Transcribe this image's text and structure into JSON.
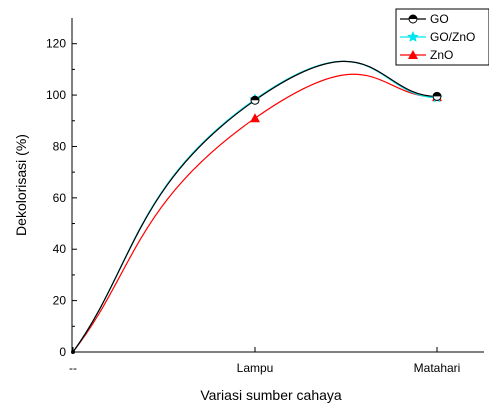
{
  "chart_data": {
    "type": "line",
    "title": "",
    "xlabel": "Variasi sumber cahaya",
    "ylabel": "Dekolorisasi (%)",
    "categories": [
      "--",
      "Lampu",
      "Matahari"
    ],
    "ylim": [
      0,
      130
    ],
    "yticks": [
      0,
      20,
      40,
      60,
      80,
      100,
      120
    ],
    "grid": false,
    "legend_position": "top-right",
    "smoothed": true,
    "series": [
      {
        "name": "GO",
        "values": [
          0,
          98.0,
          99.5
        ],
        "color": "#000000",
        "marker": "circle-half-filled"
      },
      {
        "name": "GO/ZnO",
        "values": [
          0,
          98.3,
          99.0
        ],
        "color": "#00e5ee",
        "marker": "star"
      },
      {
        "name": "ZnO",
        "values": [
          0,
          91.0,
          99.2
        ],
        "color": "#ff0000",
        "marker": "triangle"
      }
    ]
  }
}
